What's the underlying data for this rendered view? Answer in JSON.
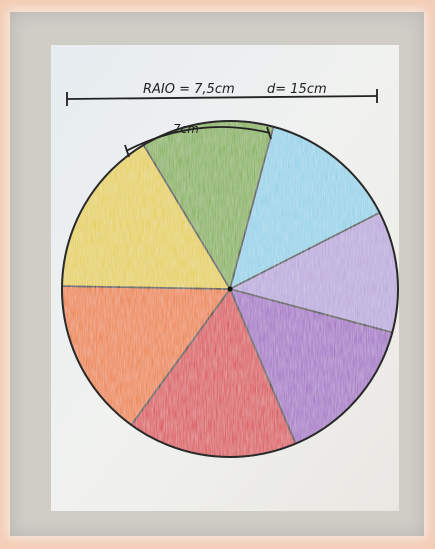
{
  "photo": {
    "annotations": {
      "radius_note": "RAIO = 7,5cm",
      "diameter_note": "d= 15cm",
      "arc_note": "7cm"
    },
    "wheel": {
      "slices": [
        {
          "name": "green",
          "color": "#7fae4a"
        },
        {
          "name": "blue",
          "color": "#8fd0e8"
        },
        {
          "name": "lilac",
          "color": "#b7a4da"
        },
        {
          "name": "purple",
          "color": "#a06cc4"
        },
        {
          "name": "red",
          "color": "#d9434a"
        },
        {
          "name": "orange",
          "color": "#ec7a2e"
        },
        {
          "name": "yellow",
          "color": "#e4ce45"
        }
      ]
    }
  }
}
